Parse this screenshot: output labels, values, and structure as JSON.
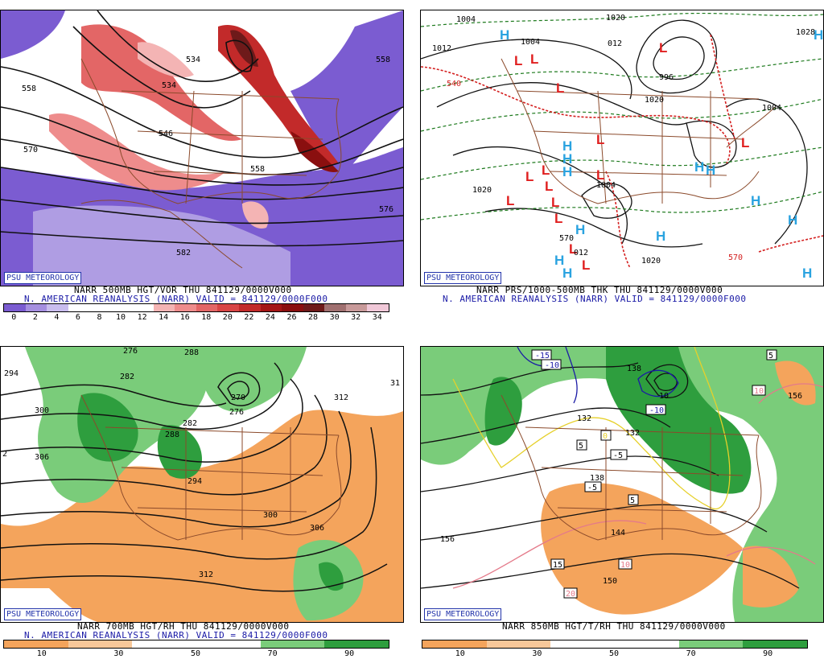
{
  "panels": [
    {
      "id": "tl",
      "badge": "PSU METEOROLOGY",
      "caption": "NARR 500MB HGT/VOR THU 841129/0000V000",
      "source": "N. AMERICAN REANALYSIS (NARR) VALID = 841129/0000F000",
      "legend_ticks": [
        "0",
        "2",
        "4",
        "6",
        "8",
        "10",
        "12",
        "14",
        "16",
        "18",
        "20",
        "22",
        "24",
        "26",
        "28",
        "30",
        "32",
        "34"
      ],
      "legend_colors": [
        "#7b5cd1",
        "#a58fe0",
        "#c9bdee",
        "#fff",
        "#fff",
        "#fff",
        "#fff",
        "#f4b4b4",
        "#ee8c8c",
        "#e36666",
        "#d84545",
        "#c22a2a",
        "#a41616",
        "#8a0f0f",
        "#6e1a1a",
        "#a07070",
        "#c89a9a",
        "#f0c8d8"
      ],
      "contour_labels": [
        "558",
        "570",
        "534",
        "534",
        "546",
        "558",
        "558",
        "582",
        "576"
      ]
    },
    {
      "id": "tr",
      "badge": "PSU METEOROLOGY",
      "caption": "NARR PRS/1000-500MB THK THU 841129/0000V000",
      "source": "N. AMERICAN REANALYSIS (NARR) VALID = 841129/0000F000",
      "contour_labels": [
        "1004",
        "1012",
        "1004",
        "1020",
        "012",
        "996",
        "1020",
        "540",
        "1004",
        "1020",
        "1020",
        "1004",
        "012",
        "570",
        "570",
        "1028"
      ],
      "high_symbol": "H",
      "low_symbol": "L"
    },
    {
      "id": "bl",
      "badge": "PSU METEOROLOGY",
      "caption": "NARR 700MB HGT/RH THU 841129/0000V000",
      "source": "N. AMERICAN REANALYSIS (NARR) VALID = 841129/0000F000",
      "legend_ticks": [
        "10",
        "30",
        "50",
        "70",
        "90"
      ],
      "legend_colors": [
        "#f4a45c",
        "#f8c89a",
        "#fff",
        "#fff",
        "#7acc7a",
        "#2e9e3e"
      ],
      "contour_labels": [
        "294",
        "276",
        "288",
        "282",
        "300",
        "270",
        "276",
        "306",
        "288",
        "282",
        "294",
        "312",
        "31",
        "300",
        "306",
        "312",
        "2"
      ]
    },
    {
      "id": "br",
      "badge": "PSU METEOROLOGY",
      "caption": "NARR 850MB HGT/T/RH THU 841129/0000V000",
      "legend_ticks": [
        "10",
        "30",
        "50",
        "70",
        "90"
      ],
      "legend_colors": [
        "#f4a45c",
        "#f8c89a",
        "#fff",
        "#fff",
        "#7acc7a",
        "#2e9e3e"
      ],
      "contour_labels": [
        "-15",
        "-10",
        "138",
        "5",
        "-10",
        "10",
        "10",
        "156",
        "132",
        "5",
        "0",
        "-5",
        "132",
        "-5",
        "138",
        "5",
        "144",
        "156",
        "15",
        "150",
        "10",
        "20"
      ]
    }
  ]
}
